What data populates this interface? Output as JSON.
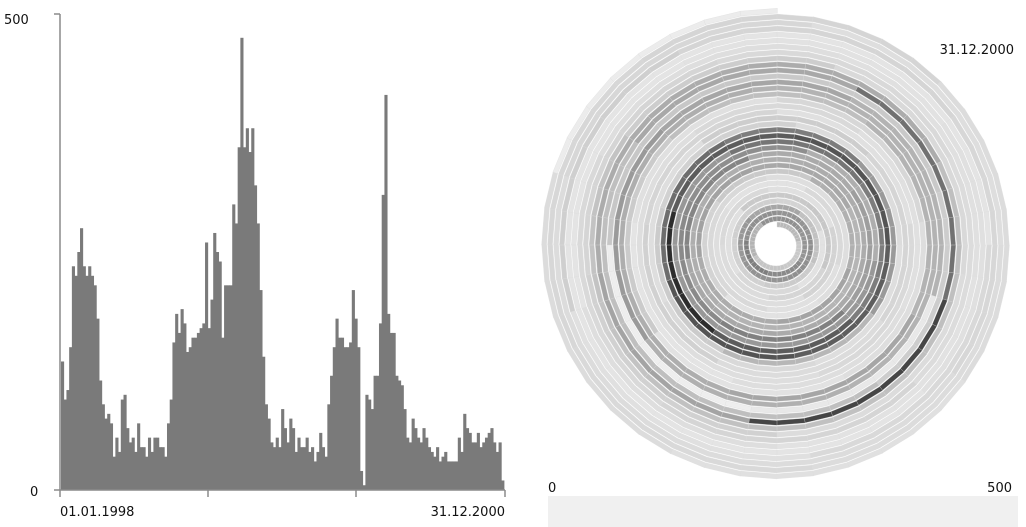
{
  "chart_data": [
    {
      "type": "bar",
      "y_ticks": [
        "500",
        "0"
      ],
      "ylim": [
        0,
        500
      ],
      "x_tick_labels": [
        "01.01.1998",
        "31.12.2000"
      ],
      "x_range": [
        "01.01.1998",
        "31.12.2000"
      ],
      "grid": false,
      "bar_color": "#7a7a7a",
      "values": [
        135,
        95,
        105,
        150,
        235,
        225,
        250,
        275,
        235,
        225,
        235,
        225,
        215,
        180,
        115,
        90,
        75,
        80,
        70,
        35,
        55,
        40,
        95,
        100,
        65,
        50,
        55,
        40,
        70,
        45,
        45,
        35,
        55,
        40,
        55,
        55,
        45,
        45,
        35,
        70,
        95,
        155,
        185,
        165,
        190,
        175,
        145,
        150,
        160,
        160,
        165,
        170,
        175,
        260,
        170,
        200,
        270,
        250,
        240,
        160,
        215,
        215,
        215,
        300,
        280,
        360,
        475,
        360,
        380,
        355,
        380,
        320,
        280,
        210,
        140,
        90,
        75,
        50,
        45,
        55,
        45,
        85,
        65,
        50,
        75,
        65,
        40,
        55,
        45,
        45,
        55,
        40,
        45,
        30,
        40,
        60,
        45,
        35,
        90,
        120,
        150,
        180,
        160,
        160,
        150,
        150,
        155,
        210,
        180,
        150,
        20,
        5,
        100,
        95,
        85,
        120,
        120,
        175,
        310,
        415,
        185,
        165,
        165,
        120,
        115,
        110,
        85,
        55,
        50,
        75,
        65,
        55,
        50,
        65,
        55,
        45,
        40,
        35,
        45,
        30,
        35,
        40,
        30,
        30,
        30,
        30,
        55,
        40,
        80,
        65,
        60,
        50,
        50,
        60,
        45,
        50,
        55,
        60,
        65,
        50,
        40,
        50,
        10
      ]
    },
    {
      "type": "heatmap",
      "layout": "spiral",
      "end_label": "31.12.2000",
      "color_scale": {
        "min_label": "0",
        "max_label": "500",
        "range": [
          0,
          500
        ]
      }
    }
  ]
}
